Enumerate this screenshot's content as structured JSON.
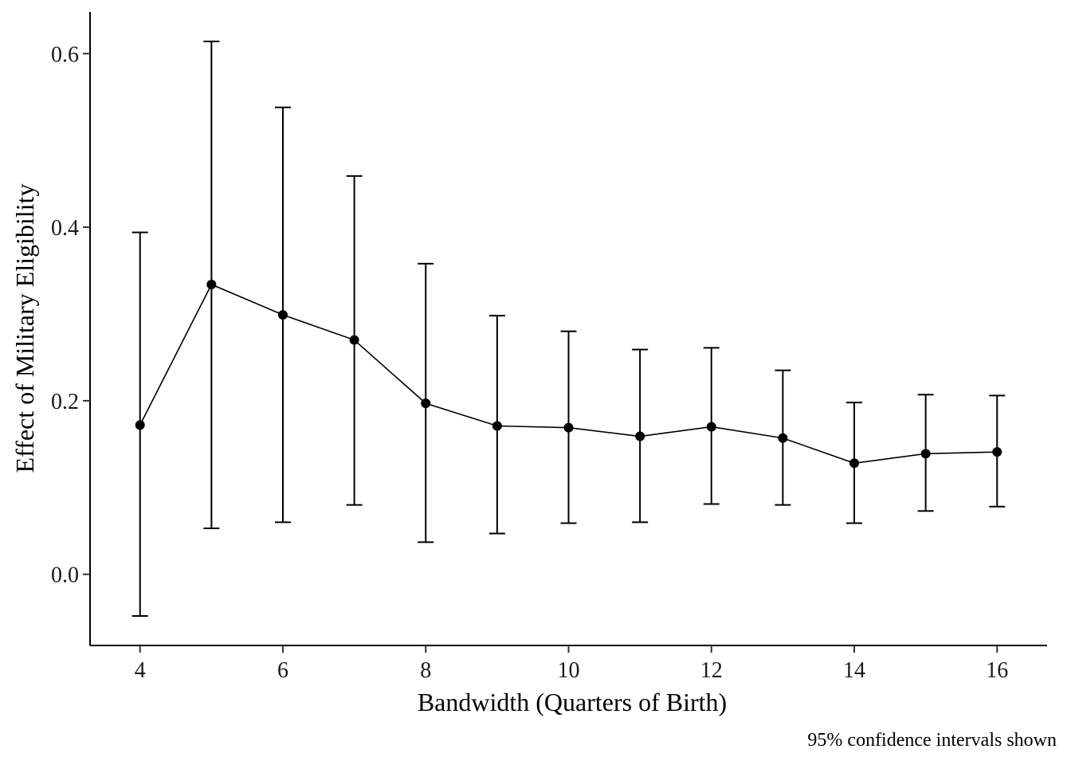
{
  "chart_data": {
    "type": "line",
    "title": "",
    "xlabel": "Bandwidth (Quarters of Birth)",
    "ylabel": "Effect of Military Eligibility",
    "caption": "95% confidence intervals shown",
    "xlim": [
      3.3,
      16.7
    ],
    "ylim": [
      -0.082,
      0.648
    ],
    "x_ticks": [
      4,
      6,
      8,
      10,
      12,
      14,
      16
    ],
    "x_tick_labels": [
      "4",
      "6",
      "8",
      "10",
      "12",
      "14",
      "16"
    ],
    "y_ticks": [
      0.0,
      0.2,
      0.4,
      0.6
    ],
    "y_tick_labels": [
      "0.0",
      "0.2",
      "0.4",
      "0.6"
    ],
    "grid": false,
    "legend": "none",
    "series": [
      {
        "x": [
          4,
          5,
          6,
          7,
          8,
          9,
          10,
          11,
          12,
          13,
          14,
          15,
          16
        ],
        "values": [
          0.172,
          0.334,
          0.299,
          0.27,
          0.197,
          0.171,
          0.169,
          0.159,
          0.17,
          0.157,
          0.128,
          0.139,
          0.141
        ],
        "ci_lower": [
          -0.048,
          0.053,
          0.06,
          0.08,
          0.037,
          0.047,
          0.059,
          0.06,
          0.081,
          0.08,
          0.059,
          0.073,
          0.078
        ],
        "ci_upper": [
          0.394,
          0.614,
          0.538,
          0.459,
          0.358,
          0.298,
          0.28,
          0.259,
          0.261,
          0.235,
          0.198,
          0.207,
          0.206
        ],
        "color": "#000000"
      }
    ]
  }
}
